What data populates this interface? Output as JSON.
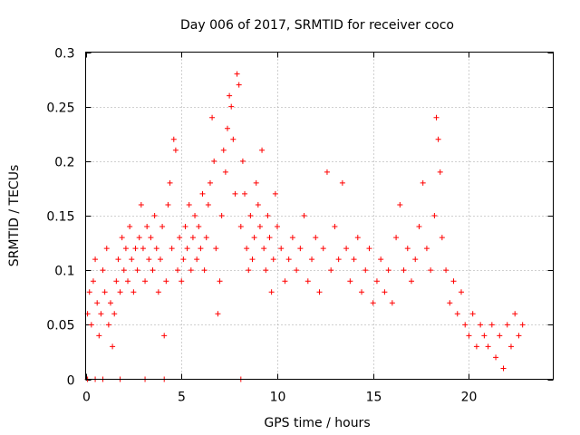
{
  "chart_data": {
    "type": "scatter",
    "title": "Day 006 of 2017, SRMTID for receiver coco",
    "xlabel": "GPS time / hours",
    "ylabel": "SRMTID / TECUs",
    "xlim": [
      0,
      24.4
    ],
    "ylim": [
      0,
      0.3
    ],
    "xticks": [
      0,
      5,
      10,
      15,
      20
    ],
    "xtick_labels": [
      "0",
      "5",
      "10",
      "15",
      "20"
    ],
    "yticks": [
      0,
      0.05,
      0.1,
      0.15,
      0.2,
      0.25,
      0.3
    ],
    "ytick_labels": [
      "0",
      "0.05",
      "0.1",
      "0.15",
      "0.2",
      "0.25",
      "0.3"
    ],
    "grid": true,
    "marker": "+",
    "marker_color": "#ff0000",
    "series": [
      {
        "name": "SRMTID",
        "points": [
          [
            0.1,
            0.0
          ],
          [
            0.5,
            0.0
          ],
          [
            0.9,
            0.0
          ],
          [
            1.8,
            0.0
          ],
          [
            3.1,
            0.0
          ],
          [
            4.1,
            0.0
          ],
          [
            8.1,
            0.0
          ],
          [
            0.1,
            0.06
          ],
          [
            0.2,
            0.08
          ],
          [
            0.3,
            0.05
          ],
          [
            0.4,
            0.09
          ],
          [
            0.5,
            0.11
          ],
          [
            0.6,
            0.07
          ],
          [
            0.7,
            0.04
          ],
          [
            0.8,
            0.06
          ],
          [
            0.9,
            0.1
          ],
          [
            1.0,
            0.08
          ],
          [
            1.1,
            0.12
          ],
          [
            1.2,
            0.05
          ],
          [
            1.3,
            0.07
          ],
          [
            1.4,
            0.03
          ],
          [
            1.5,
            0.06
          ],
          [
            1.6,
            0.09
          ],
          [
            1.7,
            0.11
          ],
          [
            1.8,
            0.08
          ],
          [
            1.9,
            0.13
          ],
          [
            2.0,
            0.1
          ],
          [
            2.1,
            0.12
          ],
          [
            2.2,
            0.09
          ],
          [
            2.3,
            0.14
          ],
          [
            2.4,
            0.11
          ],
          [
            2.5,
            0.08
          ],
          [
            2.6,
            0.12
          ],
          [
            2.7,
            0.1
          ],
          [
            2.8,
            0.13
          ],
          [
            2.9,
            0.16
          ],
          [
            3.0,
            0.12
          ],
          [
            3.1,
            0.09
          ],
          [
            3.2,
            0.14
          ],
          [
            3.3,
            0.11
          ],
          [
            3.4,
            0.13
          ],
          [
            3.5,
            0.1
          ],
          [
            3.6,
            0.15
          ],
          [
            3.7,
            0.12
          ],
          [
            3.8,
            0.08
          ],
          [
            3.9,
            0.11
          ],
          [
            4.0,
            0.14
          ],
          [
            4.1,
            0.04
          ],
          [
            4.2,
            0.09
          ],
          [
            4.3,
            0.16
          ],
          [
            4.4,
            0.18
          ],
          [
            4.5,
            0.12
          ],
          [
            4.6,
            0.22
          ],
          [
            4.7,
            0.21
          ],
          [
            4.8,
            0.1
          ],
          [
            4.9,
            0.13
          ],
          [
            5.0,
            0.09
          ],
          [
            5.1,
            0.11
          ],
          [
            5.2,
            0.14
          ],
          [
            5.3,
            0.12
          ],
          [
            5.4,
            0.16
          ],
          [
            5.5,
            0.1
          ],
          [
            5.6,
            0.13
          ],
          [
            5.7,
            0.15
          ],
          [
            5.8,
            0.11
          ],
          [
            5.9,
            0.14
          ],
          [
            6.0,
            0.12
          ],
          [
            6.1,
            0.17
          ],
          [
            6.2,
            0.1
          ],
          [
            6.3,
            0.13
          ],
          [
            6.4,
            0.16
          ],
          [
            6.5,
            0.18
          ],
          [
            6.6,
            0.24
          ],
          [
            6.7,
            0.2
          ],
          [
            6.8,
            0.12
          ],
          [
            6.9,
            0.06
          ],
          [
            7.0,
            0.09
          ],
          [
            7.1,
            0.15
          ],
          [
            7.2,
            0.21
          ],
          [
            7.3,
            0.19
          ],
          [
            7.4,
            0.23
          ],
          [
            7.5,
            0.26
          ],
          [
            7.6,
            0.25
          ],
          [
            7.7,
            0.22
          ],
          [
            7.8,
            0.17
          ],
          [
            7.9,
            0.28
          ],
          [
            8.0,
            0.27
          ],
          [
            8.1,
            0.14
          ],
          [
            8.2,
            0.2
          ],
          [
            8.3,
            0.17
          ],
          [
            8.4,
            0.12
          ],
          [
            8.5,
            0.1
          ],
          [
            8.6,
            0.15
          ],
          [
            8.7,
            0.11
          ],
          [
            8.8,
            0.13
          ],
          [
            8.9,
            0.18
          ],
          [
            9.0,
            0.16
          ],
          [
            9.1,
            0.14
          ],
          [
            9.2,
            0.21
          ],
          [
            9.3,
            0.12
          ],
          [
            9.4,
            0.1
          ],
          [
            9.5,
            0.15
          ],
          [
            9.6,
            0.13
          ],
          [
            9.7,
            0.08
          ],
          [
            9.8,
            0.11
          ],
          [
            9.9,
            0.17
          ],
          [
            10.0,
            0.14
          ],
          [
            10.2,
            0.12
          ],
          [
            10.4,
            0.09
          ],
          [
            10.6,
            0.11
          ],
          [
            10.8,
            0.13
          ],
          [
            11.0,
            0.1
          ],
          [
            11.2,
            0.12
          ],
          [
            11.4,
            0.15
          ],
          [
            11.6,
            0.09
          ],
          [
            11.8,
            0.11
          ],
          [
            12.0,
            0.13
          ],
          [
            12.2,
            0.08
          ],
          [
            12.4,
            0.12
          ],
          [
            12.6,
            0.19
          ],
          [
            12.8,
            0.1
          ],
          [
            13.0,
            0.14
          ],
          [
            13.2,
            0.11
          ],
          [
            13.4,
            0.18
          ],
          [
            13.6,
            0.12
          ],
          [
            13.8,
            0.09
          ],
          [
            14.0,
            0.11
          ],
          [
            14.2,
            0.13
          ],
          [
            14.4,
            0.08
          ],
          [
            14.6,
            0.1
          ],
          [
            14.8,
            0.12
          ],
          [
            15.0,
            0.07
          ],
          [
            15.2,
            0.09
          ],
          [
            15.4,
            0.11
          ],
          [
            15.6,
            0.08
          ],
          [
            15.8,
            0.1
          ],
          [
            16.0,
            0.07
          ],
          [
            16.2,
            0.13
          ],
          [
            16.4,
            0.16
          ],
          [
            16.6,
            0.1
          ],
          [
            16.8,
            0.12
          ],
          [
            17.0,
            0.09
          ],
          [
            17.2,
            0.11
          ],
          [
            17.4,
            0.14
          ],
          [
            17.6,
            0.18
          ],
          [
            17.8,
            0.12
          ],
          [
            18.0,
            0.1
          ],
          [
            18.2,
            0.15
          ],
          [
            18.3,
            0.24
          ],
          [
            18.4,
            0.22
          ],
          [
            18.5,
            0.19
          ],
          [
            18.6,
            0.13
          ],
          [
            18.8,
            0.1
          ],
          [
            19.0,
            0.07
          ],
          [
            19.2,
            0.09
          ],
          [
            19.4,
            0.06
          ],
          [
            19.6,
            0.08
          ],
          [
            19.8,
            0.05
          ],
          [
            20.0,
            0.04
          ],
          [
            20.2,
            0.06
          ],
          [
            20.4,
            0.03
          ],
          [
            20.6,
            0.05
          ],
          [
            20.8,
            0.04
          ],
          [
            21.0,
            0.03
          ],
          [
            21.2,
            0.05
          ],
          [
            21.4,
            0.02
          ],
          [
            21.6,
            0.04
          ],
          [
            21.8,
            0.01
          ],
          [
            22.0,
            0.05
          ],
          [
            22.2,
            0.03
          ],
          [
            22.4,
            0.06
          ],
          [
            22.6,
            0.04
          ],
          [
            22.8,
            0.05
          ]
        ]
      }
    ]
  }
}
